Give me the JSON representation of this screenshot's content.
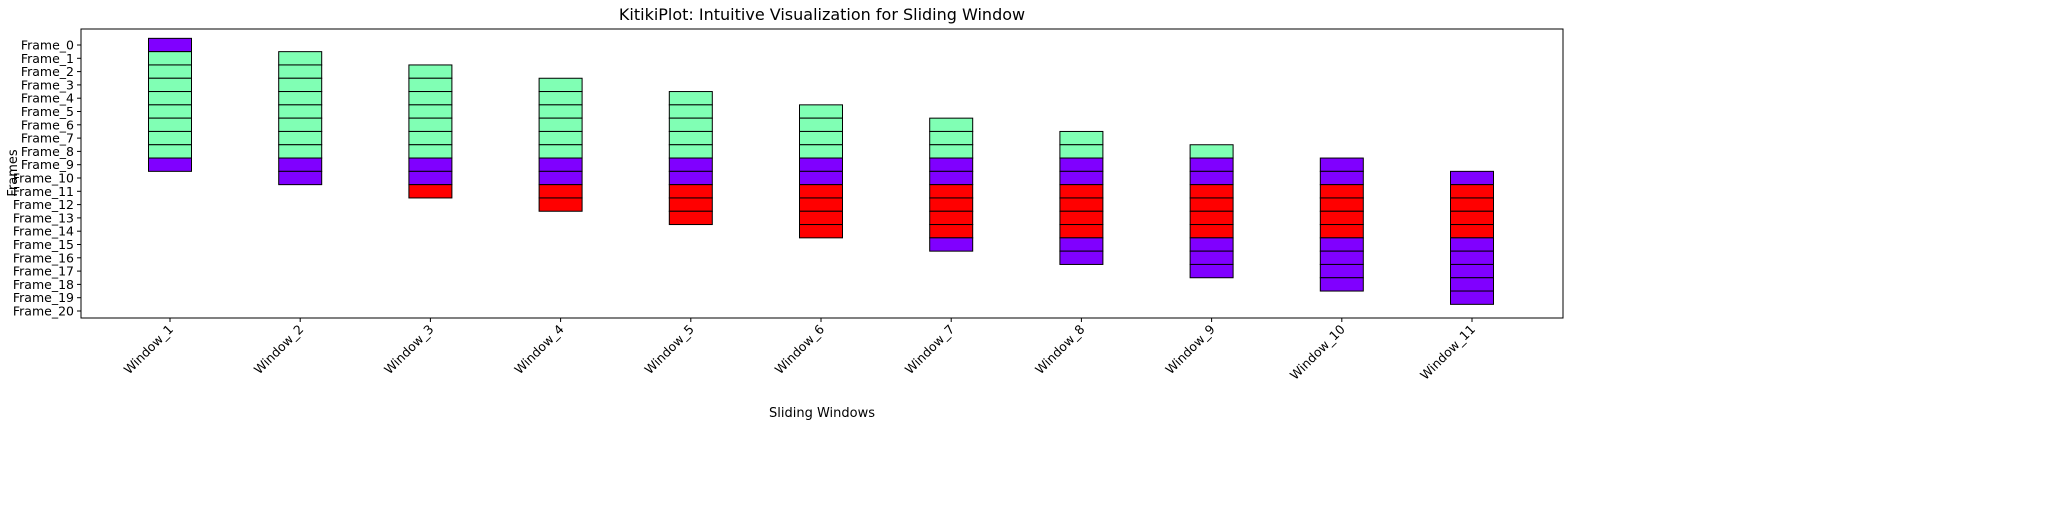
{
  "chart_data": {
    "type": "table",
    "title": "KitikiPlot: Intuitive Visualization for Sliding Window",
    "xlabel": "Sliding Windows",
    "ylabel": "Frames",
    "windows": [
      "Window_1",
      "Window_2",
      "Window_3",
      "Window_4",
      "Window_5",
      "Window_6",
      "Window_7",
      "Window_8",
      "Window_9",
      "Window_10",
      "Window_11"
    ],
    "frames": [
      "Frame_0",
      "Frame_1",
      "Frame_2",
      "Frame_3",
      "Frame_4",
      "Frame_5",
      "Frame_6",
      "Frame_7",
      "Frame_8",
      "Frame_9",
      "Frame_10",
      "Frame_11",
      "Frame_12",
      "Frame_13",
      "Frame_14",
      "Frame_15",
      "Frame_16",
      "Frame_17",
      "Frame_18",
      "Frame_19",
      "Frame_20"
    ],
    "category_colors": {
      "purple": "#8000ff",
      "green": "#80ffb4",
      "red": "#ff0000"
    },
    "cells": [
      [
        "purple",
        "green",
        "green",
        "green",
        "green",
        "green",
        "green",
        "green",
        "green",
        "purple"
      ],
      [
        "green",
        "green",
        "green",
        "green",
        "green",
        "green",
        "green",
        "green",
        "purple",
        "purple"
      ],
      [
        "green",
        "green",
        "green",
        "green",
        "green",
        "green",
        "green",
        "purple",
        "purple",
        "red"
      ],
      [
        "green",
        "green",
        "green",
        "green",
        "green",
        "green",
        "purple",
        "purple",
        "red",
        "red"
      ],
      [
        "green",
        "green",
        "green",
        "green",
        "green",
        "purple",
        "purple",
        "red",
        "red",
        "red"
      ],
      [
        "green",
        "green",
        "green",
        "green",
        "purple",
        "purple",
        "red",
        "red",
        "red",
        "red"
      ],
      [
        "green",
        "green",
        "green",
        "purple",
        "purple",
        "red",
        "red",
        "red",
        "red",
        "purple"
      ],
      [
        "green",
        "green",
        "purple",
        "purple",
        "red",
        "red",
        "red",
        "red",
        "purple",
        "purple"
      ],
      [
        "green",
        "purple",
        "purple",
        "red",
        "red",
        "red",
        "red",
        "purple",
        "purple",
        "purple"
      ],
      [
        "purple",
        "purple",
        "red",
        "red",
        "red",
        "red",
        "purple",
        "purple",
        "purple",
        "purple"
      ],
      [
        "purple",
        "red",
        "red",
        "red",
        "red",
        "purple",
        "purple",
        "purple",
        "purple",
        "purple"
      ]
    ],
    "window_offset_step": 1,
    "grid": false,
    "legend": "none"
  }
}
